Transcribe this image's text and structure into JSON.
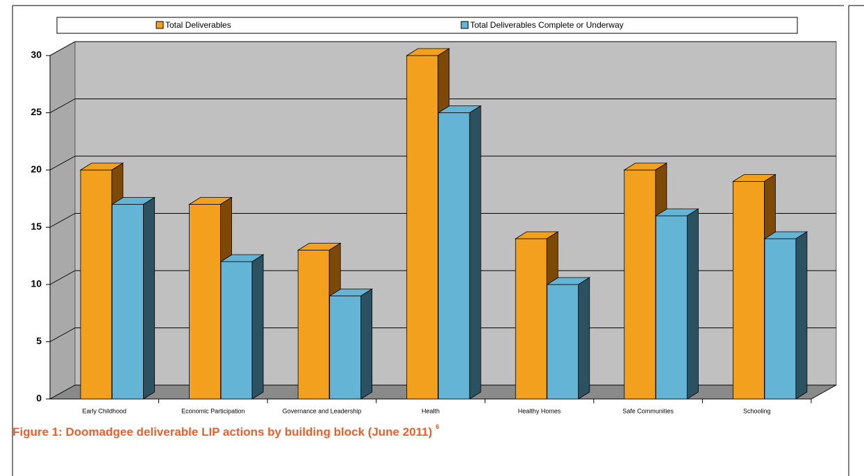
{
  "chart_data": {
    "type": "bar",
    "title": "Figure 1: Doomadgee deliverable LIP actions by building block (June 2011)",
    "footnote": "6",
    "categories": [
      "Early Childhood",
      "Economic Participation",
      "Governance and Leadership",
      "Health",
      "Healthy Homes",
      "Safe Communities",
      "Schooling"
    ],
    "series": [
      {
        "name": "Total Deliverables",
        "color": "#f2a01e",
        "side_color": "#7c4a06",
        "values": [
          20,
          17,
          13,
          30,
          14,
          20,
          19
        ]
      },
      {
        "name": "Total Deliverables Complete or Underway",
        "color": "#64b4d6",
        "side_color": "#2c5262",
        "values": [
          17,
          12,
          9,
          25,
          10,
          16,
          14
        ]
      }
    ],
    "ylim": [
      0,
      30
    ],
    "yticks": [
      0,
      5,
      10,
      15,
      20,
      25,
      30
    ],
    "grid": true,
    "legend": "top"
  }
}
